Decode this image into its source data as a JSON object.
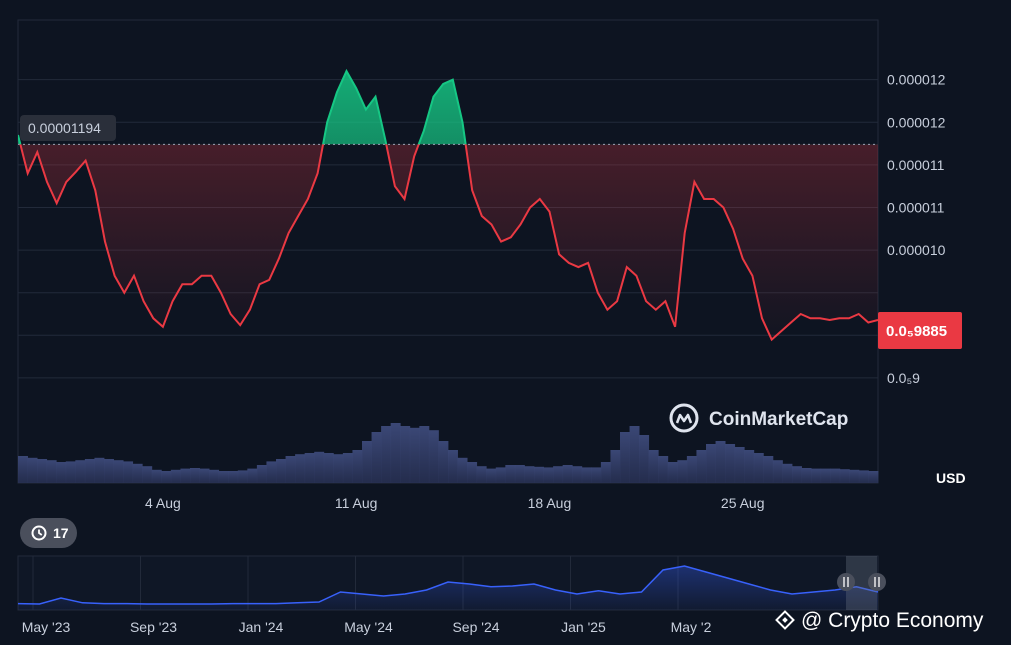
{
  "chart_data": {
    "type": "line",
    "series_color_up": "#16c784",
    "series_color_down": "#ea3943",
    "reference_price": 1.194e-05,
    "reference_label": "0.00001194",
    "current_price_label": "0.0₅9885",
    "current_price_color": "#ea3943",
    "currency": "USD",
    "ylim": [
      8.8e-06,
      1.34e-05
    ],
    "y_ticks": [
      {
        "value": 1.27e-05,
        "label": "0.000012"
      },
      {
        "value": 1.22e-05,
        "label": "0.000012"
      },
      {
        "value": 1.17e-05,
        "label": "0.000011"
      },
      {
        "value": 1.12e-05,
        "label": "0.000011"
      },
      {
        "value": 1.07e-05,
        "label": "0.000010"
      },
      {
        "value": 1.02e-05,
        "label": ""
      },
      {
        "value": 9.7e-06,
        "label": "0.0₅95"
      },
      {
        "value": 9.2e-06,
        "label": "0.0₅9"
      }
    ],
    "x_ticks": [
      {
        "index": 15,
        "label": "4 Aug"
      },
      {
        "index": 35,
        "label": "11 Aug"
      },
      {
        "index": 55,
        "label": "18 Aug"
      },
      {
        "index": 75,
        "label": "25 Aug"
      }
    ],
    "x_range": [
      0,
      89
    ],
    "prices": [
      1.205e-05,
      1.16e-05,
      1.185e-05,
      1.15e-05,
      1.125e-05,
      1.15e-05,
      1.162e-05,
      1.175e-05,
      1.14e-05,
      1.08e-05,
      1.04e-05,
      1.02e-05,
      1.04e-05,
      1.01e-05,
      9.9e-06,
      9.8e-06,
      1.01e-05,
      1.03e-05,
      1.03e-05,
      1.04e-05,
      1.04e-05,
      1.02e-05,
      9.95e-06,
      9.82e-06,
      1e-05,
      1.03e-05,
      1.035e-05,
      1.06e-05,
      1.09e-05,
      1.11e-05,
      1.13e-05,
      1.16e-05,
      1.22e-05,
      1.255e-05,
      1.28e-05,
      1.26e-05,
      1.235e-05,
      1.25e-05,
      1.2e-05,
      1.145e-05,
      1.13e-05,
      1.18e-05,
      1.21e-05,
      1.25e-05,
      1.265e-05,
      1.27e-05,
      1.22e-05,
      1.14e-05,
      1.11e-05,
      1.1e-05,
      1.08e-05,
      1.085e-05,
      1.1e-05,
      1.12e-05,
      1.13e-05,
      1.115e-05,
      1.065e-05,
      1.055e-05,
      1.05e-05,
      1.055e-05,
      1.02e-05,
      1e-05,
      1.01e-05,
      1.05e-05,
      1.04e-05,
      1.01e-05,
      1e-05,
      1.01e-05,
      9.8e-06,
      1.09e-05,
      1.15e-05,
      1.13e-05,
      1.13e-05,
      1.12e-05,
      1.095e-05,
      1.06e-05,
      1.04e-05,
      9.9e-06,
      9.65e-06,
      9.75e-06,
      9.85e-06,
      9.95e-06,
      9.9e-06,
      9.9e-06,
      9.88e-06,
      9.9e-06,
      9.9e-06,
      9.95e-06,
      9.85e-06,
      9.88e-06
    ],
    "volume": [
      0.45,
      0.42,
      0.4,
      0.38,
      0.35,
      0.36,
      0.38,
      0.4,
      0.42,
      0.4,
      0.38,
      0.36,
      0.32,
      0.28,
      0.22,
      0.2,
      0.22,
      0.24,
      0.25,
      0.24,
      0.22,
      0.2,
      0.2,
      0.21,
      0.24,
      0.3,
      0.36,
      0.4,
      0.45,
      0.48,
      0.5,
      0.52,
      0.5,
      0.48,
      0.5,
      0.55,
      0.7,
      0.85,
      0.95,
      1.0,
      0.95,
      0.92,
      0.95,
      0.88,
      0.7,
      0.55,
      0.42,
      0.35,
      0.28,
      0.24,
      0.26,
      0.3,
      0.3,
      0.28,
      0.27,
      0.26,
      0.28,
      0.3,
      0.28,
      0.26,
      0.26,
      0.35,
      0.55,
      0.85,
      0.95,
      0.8,
      0.55,
      0.45,
      0.35,
      0.38,
      0.45,
      0.55,
      0.65,
      0.7,
      0.65,
      0.6,
      0.55,
      0.5,
      0.45,
      0.38,
      0.32,
      0.28,
      0.25,
      0.24,
      0.24,
      0.24,
      0.23,
      0.22,
      0.21,
      0.2
    ],
    "navigator": {
      "labels": [
        "May '23",
        "Sep '23",
        "Jan '24",
        "May '24",
        "Sep '24",
        "Jan '25",
        "May '2"
      ],
      "x_range": [
        0,
        40
      ],
      "label_index": [
        0,
        5,
        10,
        15,
        20,
        25,
        30
      ],
      "values": [
        0.06,
        0.05,
        0.2,
        0.08,
        0.06,
        0.06,
        0.05,
        0.05,
        0.05,
        0.05,
        0.06,
        0.06,
        0.06,
        0.08,
        0.1,
        0.35,
        0.3,
        0.25,
        0.3,
        0.4,
        0.6,
        0.55,
        0.48,
        0.5,
        0.55,
        0.4,
        0.3,
        0.38,
        0.3,
        0.35,
        0.9,
        1.0,
        0.85,
        0.7,
        0.55,
        0.4,
        0.3,
        0.35,
        0.4,
        0.48,
        0.35
      ]
    }
  },
  "watermark": {
    "icon": "coinmarketcap-logo-icon",
    "text": "CoinMarketCap"
  },
  "source_credit": "@ Crypto Economy",
  "history_badge": {
    "icon": "history-icon",
    "count": "17"
  }
}
